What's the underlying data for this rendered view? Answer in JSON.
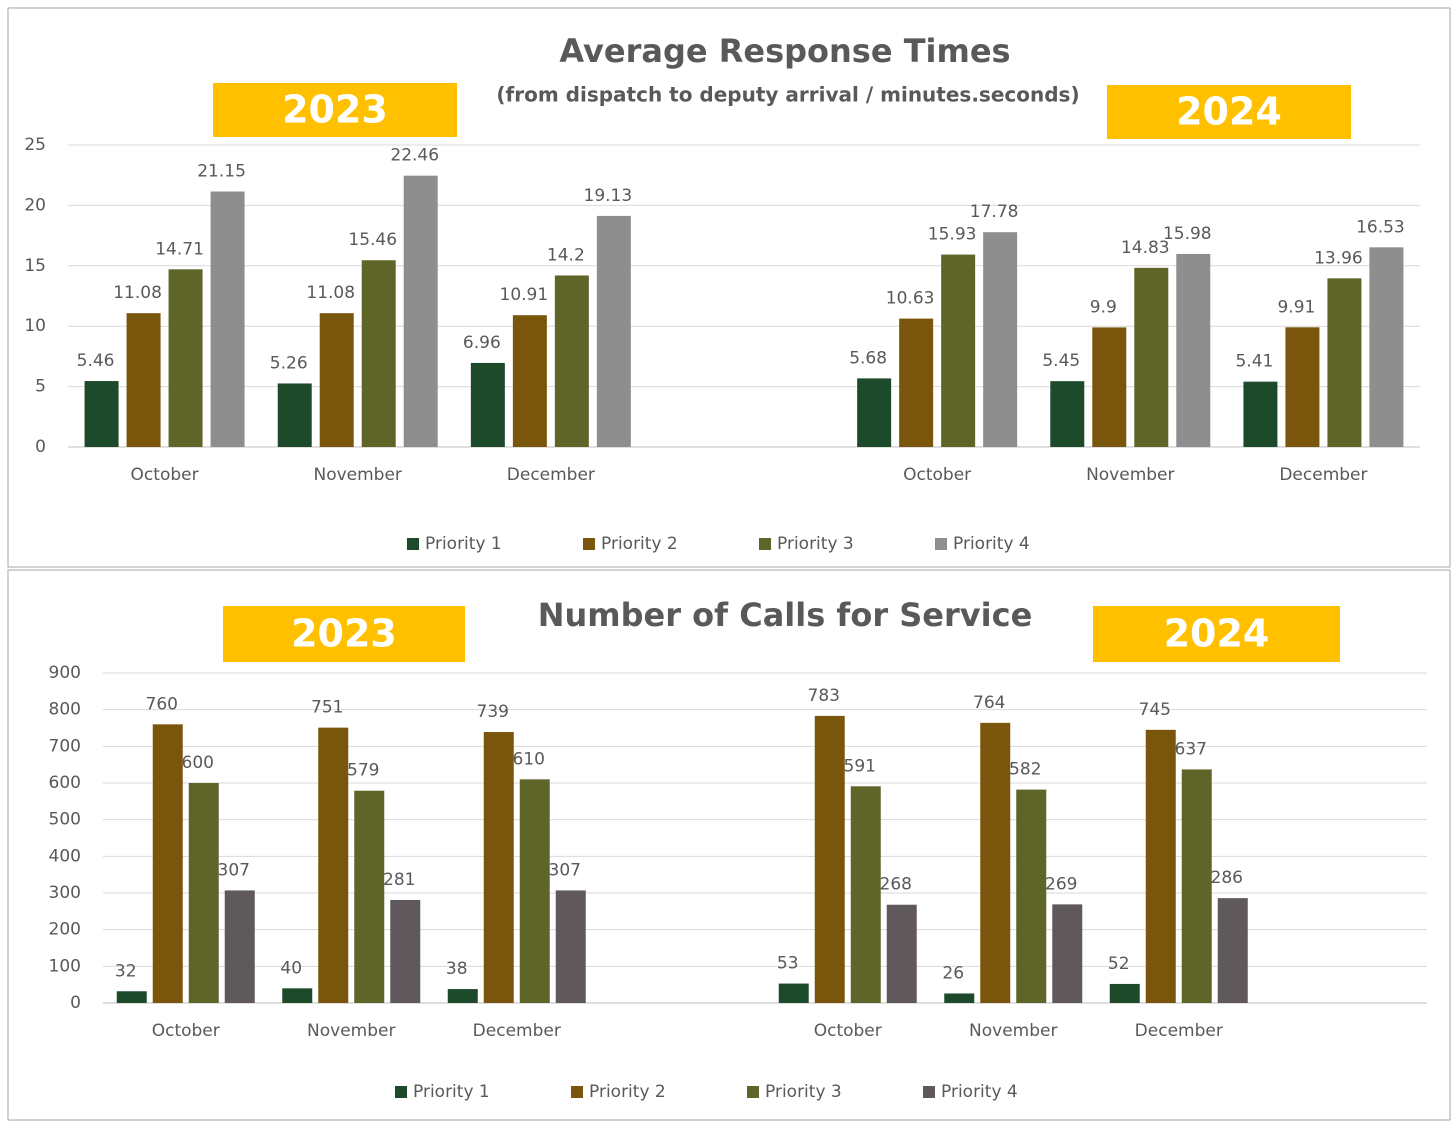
{
  "chart_data": [
    {
      "type": "bar",
      "title": "Average Response Times",
      "subtitle": "(from dispatch to deputy arrival / minutes.seconds)",
      "annotations": [
        "2023",
        "2024"
      ],
      "categories": [
        "October",
        "November",
        "December",
        null,
        "October",
        "November",
        "December"
      ],
      "series": [
        {
          "name": "Priority 1",
          "color": "#1e4a2c",
          "values": [
            5.46,
            5.26,
            6.96,
            null,
            5.68,
            5.45,
            5.41
          ]
        },
        {
          "name": "Priority 2",
          "color": "#7a560c",
          "values": [
            11.08,
            11.08,
            10.91,
            null,
            10.63,
            9.9,
            9.91
          ]
        },
        {
          "name": "Priority 3",
          "color": "#5f6528",
          "values": [
            14.71,
            15.46,
            14.2,
            null,
            15.93,
            14.83,
            13.96
          ]
        },
        {
          "name": "Priority 4",
          "color": "#8e8e8e",
          "values": [
            21.15,
            22.46,
            19.13,
            null,
            17.78,
            15.98,
            16.53
          ]
        }
      ],
      "ylim": [
        0,
        25
      ],
      "yticks": [
        0,
        5,
        10,
        15,
        20,
        25
      ],
      "grid": true,
      "legend": "bottom"
    },
    {
      "type": "bar",
      "title": "Number of Calls for Service",
      "annotations": [
        "2023",
        "2024"
      ],
      "categories": [
        "October",
        "November",
        "December",
        null,
        "October",
        "November",
        "December",
        null
      ],
      "series": [
        {
          "name": "Priority 1",
          "color": "#1e4a2c",
          "values": [
            32,
            40,
            38,
            null,
            53,
            26,
            52,
            null
          ]
        },
        {
          "name": "Priority 2",
          "color": "#7a560c",
          "values": [
            760,
            751,
            739,
            null,
            783,
            764,
            745,
            null
          ]
        },
        {
          "name": "Priority 3",
          "color": "#5f6528",
          "values": [
            600,
            579,
            610,
            null,
            591,
            582,
            637,
            null
          ]
        },
        {
          "name": "Priority 4",
          "color": "#5f595c",
          "values": [
            307,
            281,
            307,
            null,
            268,
            269,
            286,
            null
          ]
        }
      ],
      "ylim": [
        0,
        900
      ],
      "yticks": [
        0,
        100,
        200,
        300,
        400,
        500,
        600,
        700,
        800,
        900
      ],
      "grid": true,
      "legend": "bottom"
    }
  ]
}
